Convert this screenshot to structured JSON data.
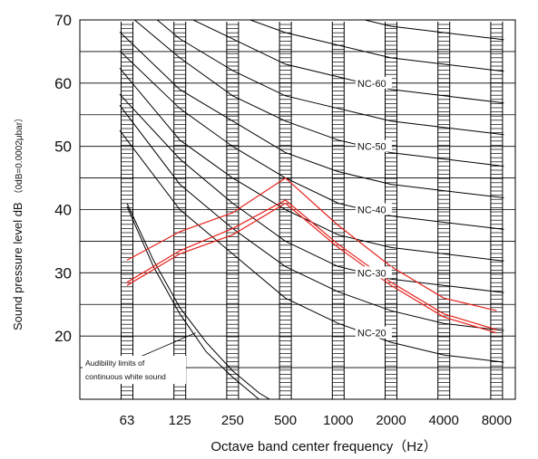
{
  "chart_data": {
    "type": "line",
    "title": "",
    "xlabel": "Octave band center frequency（Hz）",
    "ylabel": "Sound pressure level dB",
    "ylabel_note": "（0dB=0.0002μbar）",
    "x_tick_labels": [
      "63",
      "125",
      "250",
      "500",
      "1000",
      "2000",
      "4000",
      "8000"
    ],
    "y_ticks": [
      20,
      30,
      40,
      50,
      60,
      70
    ],
    "ylim": [
      10,
      70
    ],
    "grid": true,
    "nc_curves": [
      {
        "name": "NC-20",
        "label_at": 4,
        "values": [
          51,
          40,
          33,
          26,
          22,
          19,
          17,
          16
        ]
      },
      {
        "name": "",
        "values": [
          55,
          44,
          37,
          31,
          27,
          24,
          22,
          21
        ]
      },
      {
        "name": "NC-30",
        "label_at": 4,
        "values": [
          57,
          48,
          41,
          35,
          31,
          29,
          28,
          27
        ]
      },
      {
        "name": "",
        "values": [
          61,
          51,
          45,
          40,
          36,
          34,
          33,
          32
        ]
      },
      {
        "name": "NC-40",
        "label_at": 4,
        "values": [
          64,
          56,
          50,
          45,
          41,
          39,
          38,
          37
        ]
      },
      {
        "name": "",
        "values": [
          67,
          59,
          54,
          49,
          46,
          44,
          43,
          42
        ]
      },
      {
        "name": "NC-50",
        "label_at": 4,
        "values": [
          71,
          64,
          58,
          54,
          51,
          49,
          48,
          47
        ]
      },
      {
        "name": "",
        "values": [
          74,
          67,
          62,
          58,
          56,
          54,
          53,
          52
        ]
      },
      {
        "name": "NC-60",
        "label_at": 4,
        "values": [
          77,
          71,
          67,
          63,
          61,
          59,
          58,
          57
        ]
      },
      {
        "name": "",
        "values": [
          80,
          75,
          71,
          68,
          66,
          64,
          63,
          62
        ]
      },
      {
        "name": "",
        "values": [
          83,
          79,
          75,
          73,
          71,
          69,
          68,
          67
        ]
      },
      {
        "name": "",
        "values": [
          86,
          83,
          80,
          77,
          76,
          74,
          73,
          72
        ]
      }
    ],
    "audibility_curves": [
      {
        "x": [
          0,
          0.5,
          1,
          1.5,
          2,
          2.5,
          3
        ],
        "values": [
          41,
          32,
          24.5,
          19,
          14.5,
          11,
          8.5
        ]
      },
      {
        "x": [
          0,
          0.5,
          1,
          1.5,
          2,
          2.5,
          3
        ],
        "values": [
          40.5,
          31,
          23.5,
          17.5,
          13.5,
          10,
          7.5
        ]
      }
    ],
    "audibility_note": [
      "Audibility limits of",
      "continuous white sound"
    ],
    "measured_series": [
      {
        "values": [
          32,
          36.5,
          39.5,
          45,
          37.5,
          31,
          26,
          24
        ]
      },
      {
        "values": [
          28.5,
          33.5,
          37,
          41.5,
          34.5,
          28.5,
          23.5,
          21
        ]
      },
      {
        "values": [
          28,
          33,
          36,
          41,
          34,
          28,
          23,
          20.5
        ]
      }
    ],
    "colors": {
      "nc": "#000000",
      "measured": "#e8201a",
      "grid": "#000000"
    }
  }
}
